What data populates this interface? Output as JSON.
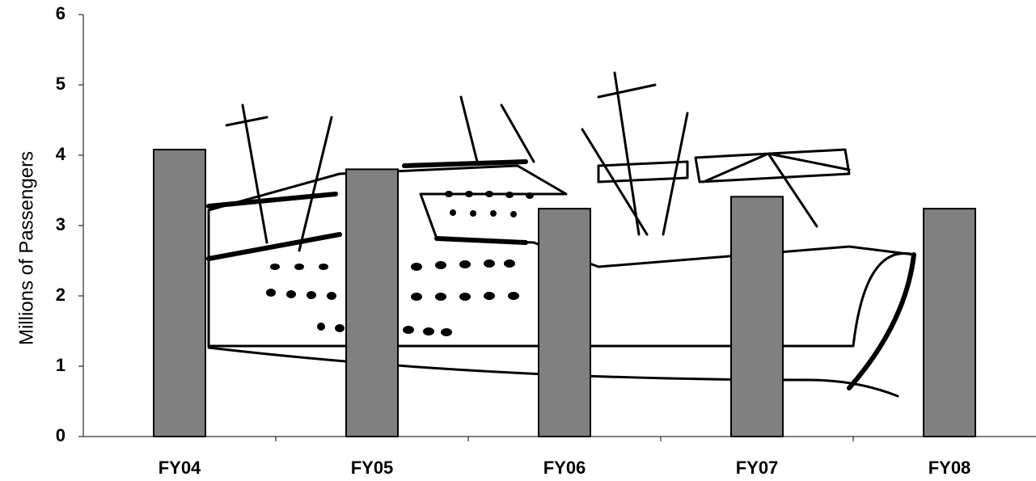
{
  "chart_data": {
    "type": "bar",
    "y_label": "Millions of Passengers",
    "categories": [
      "FY04",
      "FY05",
      "FY06",
      "FY07",
      "FY08"
    ],
    "values": [
      4.08,
      3.8,
      3.24,
      3.41,
      3.24
    ],
    "color": "#808080",
    "ylim": [
      0,
      6
    ],
    "yticks": [
      0,
      1,
      2,
      3,
      4,
      5,
      6
    ],
    "grid": false
  }
}
